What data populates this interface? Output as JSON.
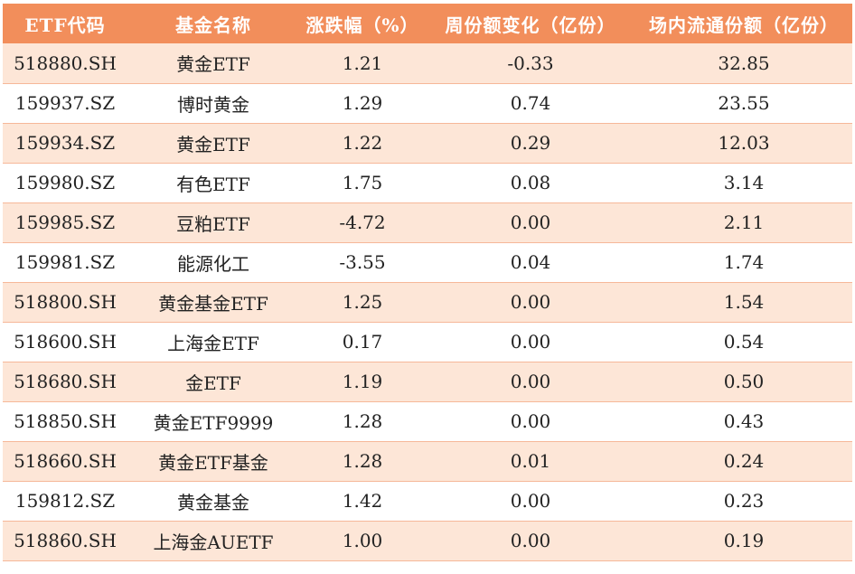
{
  "table": {
    "headers": [
      "ETF代码",
      "基金名称",
      "涨跌幅（%）",
      "周份额变化（亿份）",
      "场内流通份额（亿份）"
    ],
    "rows": [
      [
        "518880.SH",
        "黄金ETF",
        "1.21",
        "-0.33",
        "32.85"
      ],
      [
        "159937.SZ",
        "博时黄金",
        "1.29",
        "0.74",
        "23.55"
      ],
      [
        "159934.SZ",
        "黄金ETF",
        "1.22",
        "0.29",
        "12.03"
      ],
      [
        "159980.SZ",
        "有色ETF",
        "1.75",
        "0.08",
        "3.14"
      ],
      [
        "159985.SZ",
        "豆粕ETF",
        "-4.72",
        "0.00",
        "2.11"
      ],
      [
        "159981.SZ",
        "能源化工",
        "-3.55",
        "0.04",
        "1.74"
      ],
      [
        "518800.SH",
        "黄金基金ETF",
        "1.25",
        "0.00",
        "1.54"
      ],
      [
        "518600.SH",
        "上海金ETF",
        "0.17",
        "0.00",
        "0.54"
      ],
      [
        "518680.SH",
        "金ETF",
        "1.19",
        "0.00",
        "0.50"
      ],
      [
        "518850.SH",
        "黄金ETF9999",
        "1.28",
        "0.00",
        "0.43"
      ],
      [
        "518660.SH",
        "黄金ETF基金",
        "1.28",
        "0.01",
        "0.24"
      ],
      [
        "159812.SZ",
        "黄金基金",
        "1.42",
        "0.00",
        "0.23"
      ],
      [
        "518860.SH",
        "上海金AUETF",
        "1.00",
        "0.00",
        "0.19"
      ]
    ]
  },
  "colors": {
    "header_bg": "#f28e5b",
    "header_text": "#ffffff",
    "stripe_bg": "#fde6d7",
    "row_border": "#f6b899"
  }
}
